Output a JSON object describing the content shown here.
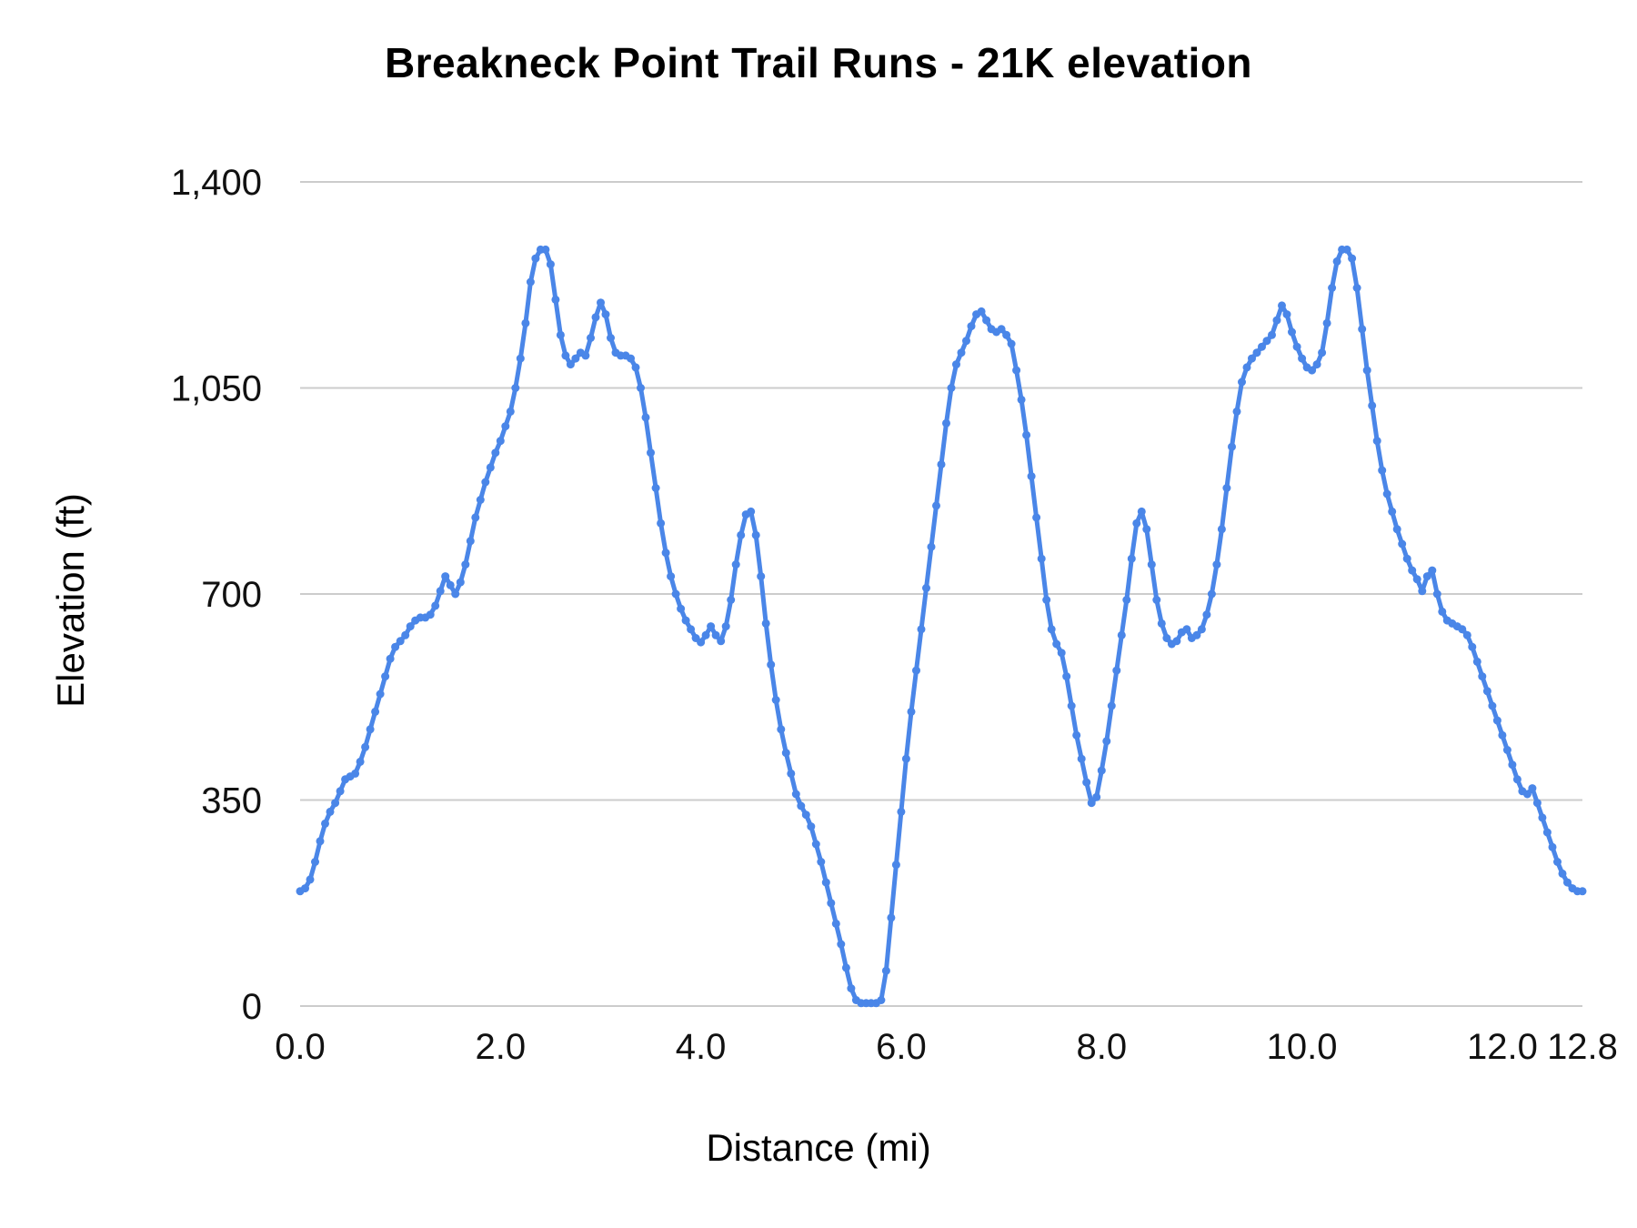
{
  "chart_data": {
    "type": "line",
    "title": "Breakneck Point Trail Runs - 21K elevation",
    "xlabel": "Distance (mi)",
    "ylabel": "Elevation (ft)",
    "xlim": [
      0,
      12.8
    ],
    "ylim": [
      0,
      1400
    ],
    "grid": true,
    "legend_position": "none",
    "line_color": "#4a86e8",
    "grid_color": "#cccccc",
    "series_name": "Elevation",
    "yticks": [
      {
        "value": 0,
        "label": "0"
      },
      {
        "value": 350,
        "label": "350"
      },
      {
        "value": 700,
        "label": "700"
      },
      {
        "value": 1050,
        "label": "1,050"
      },
      {
        "value": 1400,
        "label": "1,400"
      }
    ],
    "xticks": [
      {
        "value": 0,
        "label": "0.0"
      },
      {
        "value": 2,
        "label": "2.0"
      },
      {
        "value": 4,
        "label": "4.0"
      },
      {
        "value": 6,
        "label": "6.0"
      },
      {
        "value": 8,
        "label": "8.0"
      },
      {
        "value": 10,
        "label": "10.0"
      },
      {
        "value": 12,
        "label": "12.0"
      },
      {
        "value": 12.8,
        "label": "12.8"
      }
    ],
    "x_start": 0,
    "x_step": 0.05,
    "values": [
      195,
      200,
      215,
      245,
      280,
      310,
      330,
      345,
      365,
      385,
      390,
      395,
      415,
      440,
      470,
      500,
      530,
      560,
      590,
      610,
      620,
      630,
      645,
      655,
      660,
      660,
      665,
      680,
      705,
      730,
      715,
      700,
      720,
      750,
      790,
      830,
      860,
      890,
      915,
      940,
      960,
      985,
      1010,
      1050,
      1100,
      1160,
      1230,
      1270,
      1285,
      1285,
      1260,
      1200,
      1140,
      1105,
      1090,
      1100,
      1110,
      1105,
      1135,
      1170,
      1195,
      1175,
      1135,
      1110,
      1105,
      1105,
      1100,
      1085,
      1050,
      1000,
      940,
      880,
      820,
      770,
      730,
      700,
      675,
      655,
      640,
      625,
      618,
      630,
      645,
      630,
      620,
      645,
      690,
      750,
      800,
      835,
      840,
      800,
      730,
      650,
      580,
      520,
      470,
      430,
      395,
      360,
      340,
      325,
      305,
      275,
      245,
      210,
      175,
      140,
      105,
      65,
      30,
      10,
      5,
      5,
      5,
      5,
      10,
      60,
      150,
      240,
      330,
      420,
      500,
      570,
      640,
      710,
      780,
      850,
      920,
      990,
      1050,
      1090,
      1110,
      1130,
      1155,
      1175,
      1180,
      1165,
      1150,
      1145,
      1150,
      1140,
      1125,
      1080,
      1030,
      970,
      900,
      830,
      760,
      690,
      640,
      615,
      600,
      560,
      510,
      460,
      420,
      380,
      345,
      355,
      400,
      450,
      510,
      570,
      630,
      690,
      760,
      820,
      840,
      810,
      750,
      690,
      650,
      625,
      615,
      620,
      635,
      640,
      625,
      630,
      640,
      665,
      700,
      750,
      810,
      880,
      950,
      1010,
      1060,
      1085,
      1100,
      1110,
      1120,
      1130,
      1140,
      1165,
      1190,
      1175,
      1145,
      1120,
      1100,
      1085,
      1080,
      1090,
      1110,
      1160,
      1220,
      1265,
      1285,
      1285,
      1270,
      1220,
      1150,
      1080,
      1020,
      960,
      910,
      870,
      840,
      810,
      785,
      760,
      740,
      725,
      705,
      730,
      740,
      700,
      670,
      655,
      650,
      645,
      640,
      630,
      610,
      585,
      560,
      535,
      510,
      485,
      460,
      435,
      410,
      385,
      365,
      360,
      370,
      345,
      320,
      295,
      270,
      245,
      225,
      210,
      200,
      195,
      195
    ]
  }
}
